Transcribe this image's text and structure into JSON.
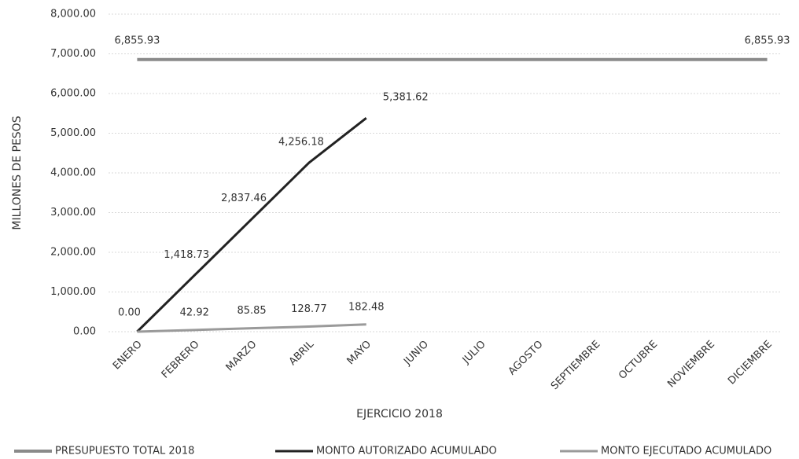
{
  "chart_data": {
    "type": "line",
    "y_label": "MILLONES DE PESOS",
    "x_label": "EJERCICIO 2018",
    "categories": [
      "ENERO",
      "FEBRERO",
      "MARZO",
      "ABRIL",
      "MAYO",
      "JUNIO",
      "JULIO",
      "AGOSTO",
      "SEPTIEMBRE",
      "OCTUBRE",
      "NOVIEMBRE",
      "DICIEMBRE"
    ],
    "series": [
      {
        "name": "PRESUPUESTO TOTAL 2018",
        "color": "#8a8a8a",
        "width": 4,
        "values": [
          6855.93,
          6855.93,
          6855.93,
          6855.93,
          6855.93,
          6855.93,
          6855.93,
          6855.93,
          6855.93,
          6855.93,
          6855.93,
          6855.93
        ],
        "value_labels": [
          "6,855.93",
          null,
          null,
          null,
          null,
          null,
          null,
          null,
          null,
          null,
          null,
          "6,855.93"
        ]
      },
      {
        "name": "MONTO AUTORIZADO ACUMULADO",
        "color": "#222222",
        "width": 3,
        "values": [
          0,
          1418.73,
          2837.46,
          4256.18,
          5381.62,
          null,
          null,
          null,
          null,
          null,
          null,
          null
        ],
        "value_labels": [
          "0.00",
          "1,418.73",
          "2,837.46",
          "4,256.18",
          "5,381.62",
          null,
          null,
          null,
          null,
          null,
          null,
          null
        ]
      },
      {
        "name": "MONTO EJECUTADO ACUMULADO",
        "color": "#9a9a9a",
        "width": 3,
        "values": [
          0,
          42.92,
          85.85,
          128.77,
          182.48,
          null,
          null,
          null,
          null,
          null,
          null,
          null
        ],
        "value_labels": [
          null,
          "42.92",
          "85.85",
          "128.77",
          "182.48",
          null,
          null,
          null,
          null,
          null,
          null,
          null
        ]
      }
    ],
    "ylim": [
      0,
      8000
    ],
    "yticks": [
      {
        "value": 0,
        "label": "0.00"
      },
      {
        "value": 1000,
        "label": "1,000.00"
      },
      {
        "value": 2000,
        "label": "2,000.00"
      },
      {
        "value": 3000,
        "label": "3,000.00"
      },
      {
        "value": 4000,
        "label": "4,000.00"
      },
      {
        "value": 5000,
        "label": "5,000.00"
      },
      {
        "value": 6000,
        "label": "6,000.00"
      },
      {
        "value": 7000,
        "label": "7,000.00"
      },
      {
        "value": 8000,
        "label": "8,000.00"
      }
    ],
    "grid": true
  }
}
